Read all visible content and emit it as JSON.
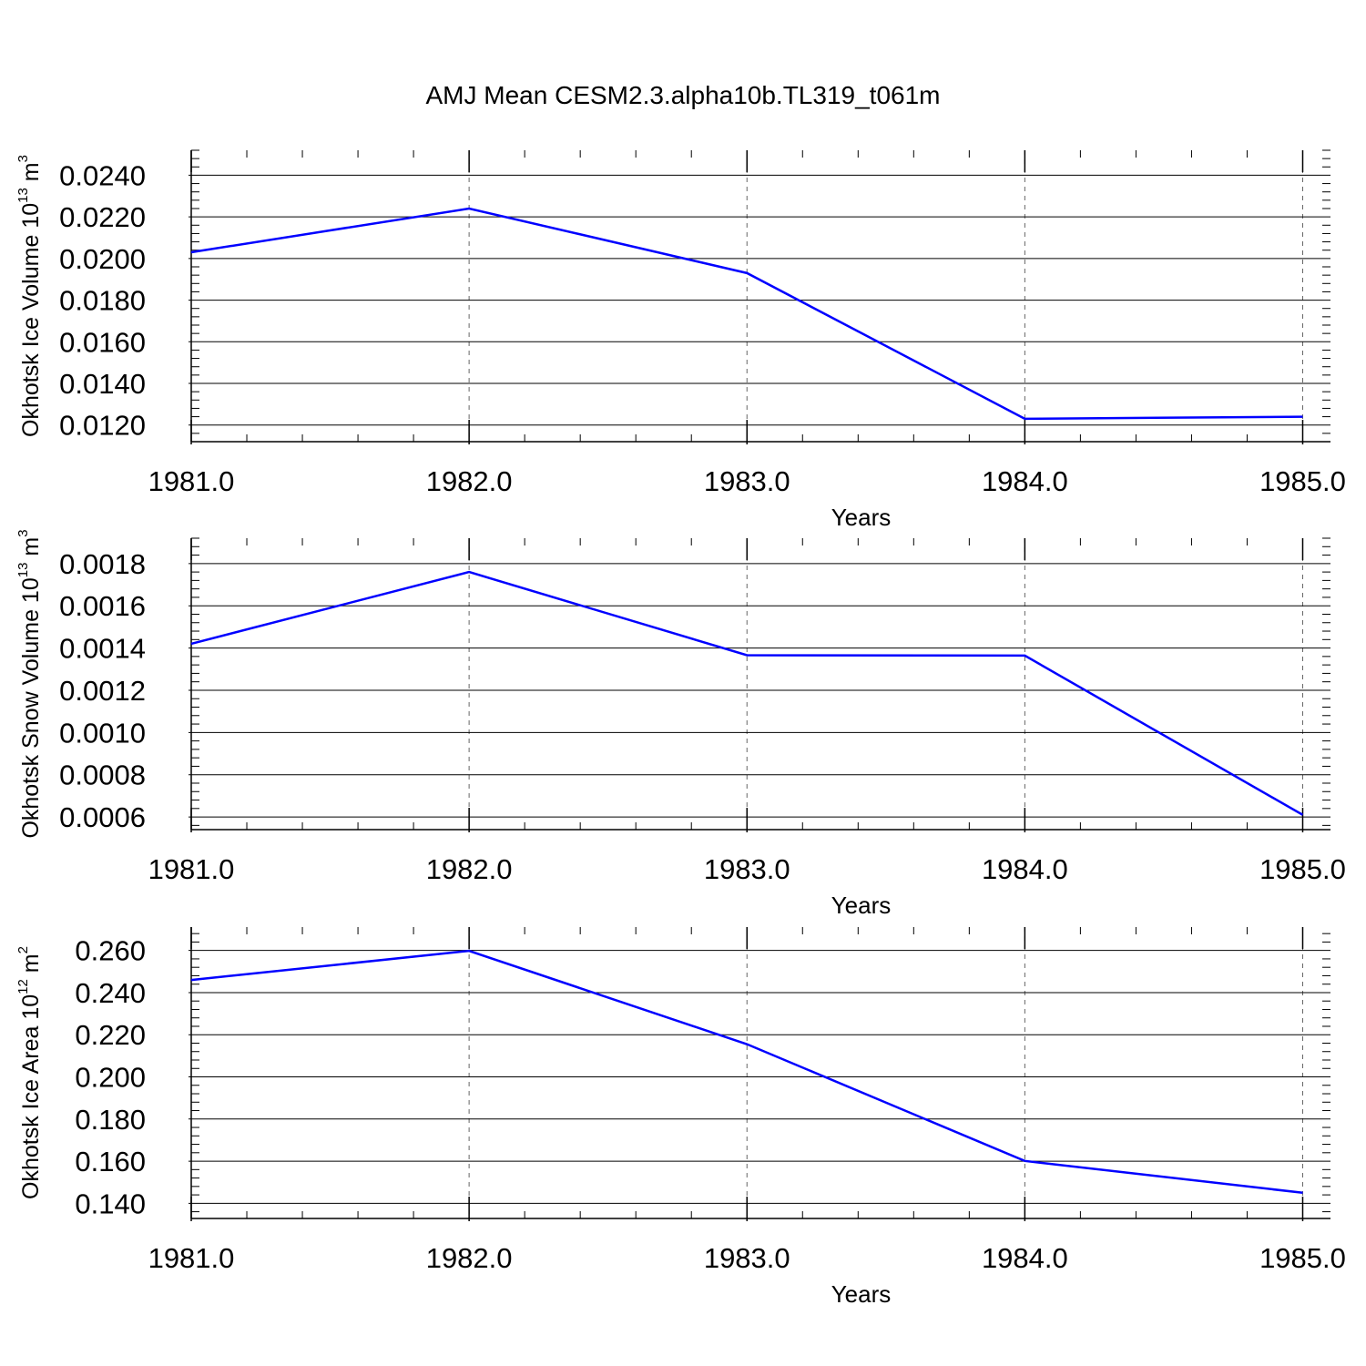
{
  "title": "AMJ Mean CESM2.3.alpha10b.TL319_t061m",
  "line_color": "#0000ff",
  "chart_data": [
    {
      "type": "line",
      "ylabel": "Okhotsk Ice Volume 10",
      "ylabel_exp": "13",
      "ylabel_unit": " m",
      "ylabel_unit_exp": "3",
      "xlabel": "Years",
      "x": [
        1981,
        1982,
        1983,
        1984,
        1985
      ],
      "y": [
        0.0203,
        0.0224,
        0.0193,
        0.0123,
        0.0124
      ],
      "xlim": [
        1981,
        1985.1
      ],
      "ylim": [
        0.0112,
        0.0252
      ],
      "yticks": [
        0.012,
        0.014,
        0.016,
        0.018,
        0.02,
        0.022,
        0.024
      ],
      "ytick_labels": [
        "0.0120",
        "0.0140",
        "0.0160",
        "0.0180",
        "0.0200",
        "0.0220",
        "0.0240"
      ],
      "ytick_minor": 0.0004,
      "xticks": [
        1981,
        1982,
        1983,
        1984,
        1985
      ],
      "xtick_labels": [
        "1981.0",
        "1982.0",
        "1983.0",
        "1984.0",
        "1985.0"
      ],
      "xtick_minor": 0.2,
      "grid_x": true
    },
    {
      "type": "line",
      "ylabel": "Okhotsk Snow Volume 10",
      "ylabel_exp": "13",
      "ylabel_unit": " m",
      "ylabel_unit_exp": "3",
      "xlabel": "Years",
      "x": [
        1981,
        1982,
        1983,
        1984,
        1985
      ],
      "y": [
        0.00142,
        0.00176,
        0.001366,
        0.001364,
        0.00061
      ],
      "xlim": [
        1981,
        1985.1
      ],
      "ylim": [
        0.00054,
        0.00192
      ],
      "yticks": [
        0.0006,
        0.0008,
        0.001,
        0.0012,
        0.0014,
        0.0016,
        0.0018
      ],
      "ytick_labels": [
        "0.0006",
        "0.0008",
        "0.0010",
        "0.0012",
        "0.0014",
        "0.0016",
        "0.0018"
      ],
      "ytick_minor": 4e-05,
      "xticks": [
        1981,
        1982,
        1983,
        1984,
        1985
      ],
      "xtick_labels": [
        "1981.0",
        "1982.0",
        "1983.0",
        "1984.0",
        "1985.0"
      ],
      "xtick_minor": 0.2,
      "grid_x": true
    },
    {
      "type": "line",
      "ylabel": "Okhotsk Ice Area 10",
      "ylabel_exp": "12",
      "ylabel_unit": " m",
      "ylabel_unit_exp": "2",
      "xlabel": "Years",
      "x": [
        1981,
        1982,
        1983,
        1984,
        1985
      ],
      "y": [
        0.246,
        0.2598,
        0.2155,
        0.1601,
        0.145
      ],
      "xlim": [
        1981,
        1985.1
      ],
      "ylim": [
        0.1328,
        0.2711
      ],
      "yticks": [
        0.14,
        0.16,
        0.18,
        0.2,
        0.22,
        0.24,
        0.26
      ],
      "ytick_labels": [
        "0.140",
        "0.160",
        "0.180",
        "0.200",
        "0.220",
        "0.240",
        "0.260"
      ],
      "ytick_minor": 0.004,
      "xticks": [
        1981,
        1982,
        1983,
        1984,
        1985
      ],
      "xtick_labels": [
        "1981.0",
        "1982.0",
        "1983.0",
        "1984.0",
        "1985.0"
      ],
      "xtick_minor": 0.2,
      "grid_x": true
    }
  ]
}
